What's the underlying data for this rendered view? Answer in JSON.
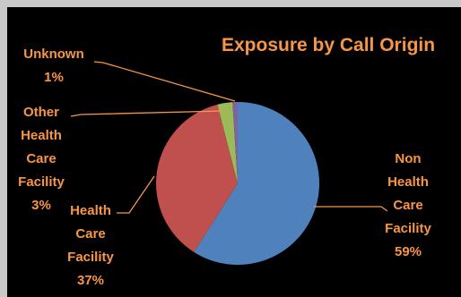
{
  "colors": {
    "background": "#000000",
    "frame": "#c9c9c9",
    "text": "#f79646",
    "leader": "#f79646"
  },
  "chart_data": {
    "type": "pie",
    "title": "Exposure by Call Origin",
    "legend": "none",
    "slices": [
      {
        "label": "Non Health Care Facility",
        "value": 59,
        "display": "59%",
        "color": "#4f81bd",
        "label_lines": [
          "Non",
          "Health",
          "Care",
          "Facility"
        ]
      },
      {
        "label": "Health Care Facility",
        "value": 37,
        "display": "37%",
        "color": "#c0504d",
        "label_lines": [
          "Health",
          "Care",
          "Facility"
        ]
      },
      {
        "label": "Other Health Care Facility",
        "value": 3,
        "display": "3%",
        "color": "#9bbb59",
        "label_lines": [
          "Other",
          "Health",
          "Care",
          "Facility"
        ]
      },
      {
        "label": "Unknown",
        "value": 1,
        "display": "1%",
        "color": "#8064a2",
        "label_lines": [
          "Unknown"
        ]
      }
    ]
  }
}
